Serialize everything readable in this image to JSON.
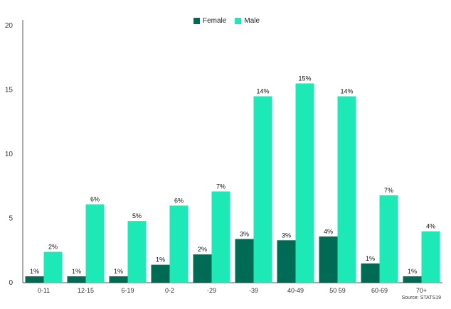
{
  "chart_data": {
    "type": "bar",
    "categories": [
      "0-11",
      "12-15",
      "6-19",
      "0-2",
      "-29",
      "-39",
      "40-49",
      "50 59",
      "60-69",
      "70+"
    ],
    "series": [
      {
        "name": "Female",
        "color": "#006b55",
        "values": [
          0.5,
          0.5,
          0.5,
          1.4,
          2.2,
          3.4,
          3.3,
          3.6,
          1.5,
          0.5
        ],
        "labels": [
          "1%",
          "1%",
          "1%",
          "1%",
          "2%",
          "3%",
          "3%",
          "4%",
          "1%",
          "1%"
        ]
      },
      {
        "name": "Male",
        "color": "#1de9b6",
        "values": [
          2.4,
          6.1,
          4.8,
          6.0,
          7.1,
          14.5,
          15.5,
          14.5,
          6.8,
          4.0
        ],
        "labels": [
          "2%",
          "6%",
          "5%",
          "6%",
          "7%",
          "14%",
          "15%",
          "14%",
          "7%",
          "4%"
        ]
      }
    ],
    "ylim": [
      0,
      20
    ],
    "yticks": [
      "0",
      "5",
      "10",
      "15",
      "20"
    ],
    "title": "",
    "xlabel": "",
    "ylabel": "",
    "legend_position": "top-center",
    "source": "Source: STATS19"
  }
}
